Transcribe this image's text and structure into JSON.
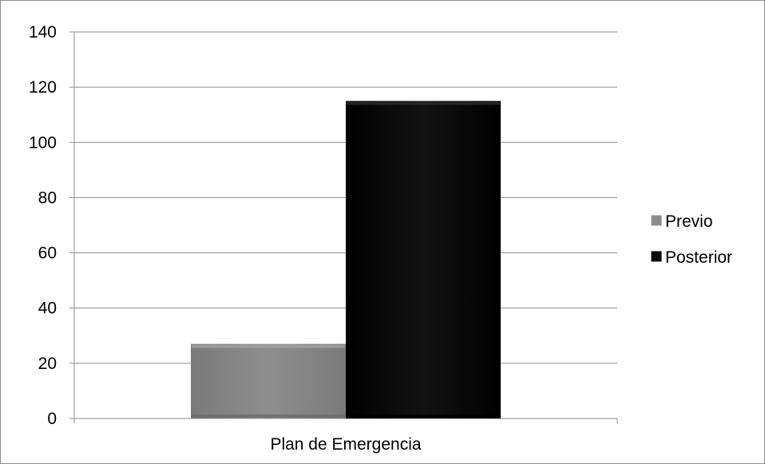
{
  "chart_data": {
    "type": "bar",
    "categories": [
      "Plan de Emergencia"
    ],
    "series": [
      {
        "name": "Previo",
        "values": [
          27
        ],
        "color": "#8c8c8c"
      },
      {
        "name": "Posterior",
        "values": [
          115
        ],
        "color": "#0a0a0a"
      }
    ],
    "ylim": [
      0,
      140
    ],
    "yticks": [
      0,
      20,
      40,
      60,
      80,
      100,
      120,
      140
    ],
    "grid": true,
    "legend_position": "right",
    "title": "",
    "xlabel": "",
    "ylabel": ""
  }
}
